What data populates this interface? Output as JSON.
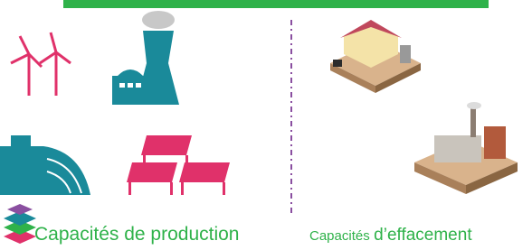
{
  "left_label": "Capacités de production",
  "right_label": {
    "small": "Capacités",
    "large": "d’effacement"
  }
}
